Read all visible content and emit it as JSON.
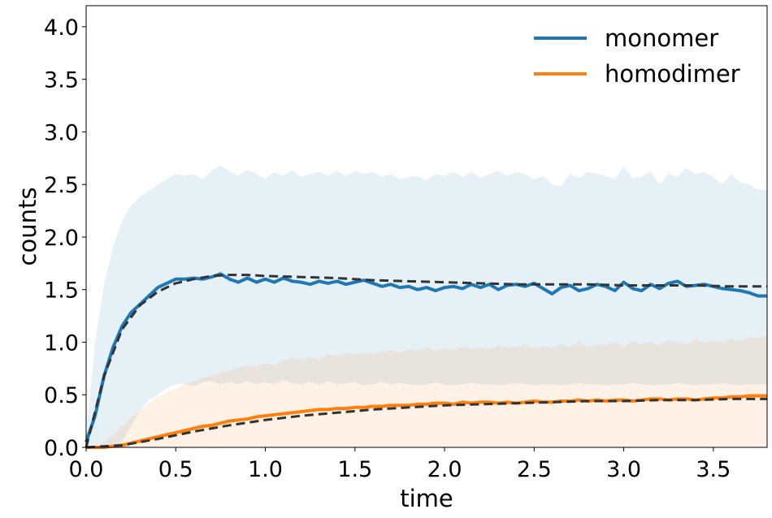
{
  "chart_data": {
    "type": "line",
    "title": "",
    "xlabel": "time",
    "ylabel": "counts",
    "xlim": [
      0,
      3.8
    ],
    "ylim": [
      0,
      4.2
    ],
    "xticks": [
      "0.0",
      "0.5",
      "1.0",
      "1.5",
      "2.0",
      "2.5",
      "3.0",
      "3.5"
    ],
    "yticks": [
      "0.0",
      "0.5",
      "1.0",
      "1.5",
      "2.0",
      "2.5",
      "3.0",
      "3.5",
      "4.0"
    ],
    "grid": false,
    "legend_position": "top-right",
    "series": [
      {
        "name": "monomer",
        "color": "#1f77b4",
        "x": [
          0,
          0.05,
          0.1,
          0.15,
          0.2,
          0.25,
          0.3,
          0.35,
          0.4,
          0.45,
          0.5,
          0.55,
          0.6,
          0.65,
          0.7,
          0.75,
          0.8,
          0.85,
          0.9,
          0.95,
          1.0,
          1.05,
          1.1,
          1.15,
          1.2,
          1.25,
          1.3,
          1.35,
          1.4,
          1.45,
          1.5,
          1.55,
          1.6,
          1.65,
          1.7,
          1.75,
          1.8,
          1.85,
          1.9,
          1.95,
          2.0,
          2.05,
          2.1,
          2.15,
          2.2,
          2.25,
          2.3,
          2.35,
          2.4,
          2.45,
          2.5,
          2.55,
          2.6,
          2.65,
          2.7,
          2.75,
          2.8,
          2.85,
          2.9,
          2.95,
          3.0,
          3.05,
          3.1,
          3.15,
          3.2,
          3.25,
          3.3,
          3.35,
          3.4,
          3.45,
          3.5,
          3.55,
          3.6,
          3.65,
          3.7,
          3.75,
          3.8
        ],
        "values": [
          0.05,
          0.3,
          0.68,
          0.95,
          1.15,
          1.28,
          1.36,
          1.44,
          1.52,
          1.56,
          1.6,
          1.6,
          1.61,
          1.6,
          1.62,
          1.65,
          1.6,
          1.57,
          1.61,
          1.57,
          1.6,
          1.57,
          1.61,
          1.58,
          1.57,
          1.55,
          1.58,
          1.56,
          1.58,
          1.55,
          1.57,
          1.59,
          1.56,
          1.53,
          1.55,
          1.52,
          1.53,
          1.5,
          1.52,
          1.49,
          1.52,
          1.53,
          1.51,
          1.55,
          1.52,
          1.55,
          1.5,
          1.54,
          1.55,
          1.53,
          1.56,
          1.51,
          1.46,
          1.52,
          1.54,
          1.49,
          1.51,
          1.55,
          1.53,
          1.49,
          1.57,
          1.51,
          1.49,
          1.55,
          1.51,
          1.56,
          1.58,
          1.53,
          1.54,
          1.55,
          1.53,
          1.51,
          1.5,
          1.49,
          1.47,
          1.44,
          1.44
        ],
        "band_lower": [
          0,
          0,
          0,
          0,
          0.05,
          0.2,
          0.35,
          0.45,
          0.5,
          0.56,
          0.6,
          0.6,
          0.58,
          0.62,
          0.63,
          0.6,
          0.62,
          0.6,
          0.63,
          0.6,
          0.62,
          0.6,
          0.64,
          0.61,
          0.6,
          0.62,
          0.6,
          0.63,
          0.6,
          0.61,
          0.62,
          0.59,
          0.6,
          0.62,
          0.6,
          0.61,
          0.6,
          0.59,
          0.6,
          0.62,
          0.6,
          0.59,
          0.6,
          0.61,
          0.6,
          0.6,
          0.59,
          0.6,
          0.61,
          0.6,
          0.59,
          0.6,
          0.6,
          0.59,
          0.6,
          0.61,
          0.6,
          0.6,
          0.59,
          0.6,
          0.6,
          0.61,
          0.6,
          0.59,
          0.6,
          0.6,
          0.61,
          0.6,
          0.59,
          0.6,
          0.6,
          0.61,
          0.6,
          0.59,
          0.6,
          0.6,
          0.6
        ],
        "band_upper": [
          0.1,
          1.0,
          1.55,
          1.9,
          2.15,
          2.3,
          2.38,
          2.44,
          2.5,
          2.55,
          2.6,
          2.58,
          2.6,
          2.55,
          2.63,
          2.68,
          2.62,
          2.58,
          2.64,
          2.6,
          2.55,
          2.62,
          2.58,
          2.64,
          2.57,
          2.6,
          2.62,
          2.58,
          2.63,
          2.58,
          2.63,
          2.6,
          2.62,
          2.57,
          2.6,
          2.55,
          2.57,
          2.58,
          2.54,
          2.6,
          2.58,
          2.62,
          2.57,
          2.62,
          2.56,
          2.6,
          2.63,
          2.58,
          2.62,
          2.6,
          2.55,
          2.58,
          2.5,
          2.48,
          2.6,
          2.56,
          2.62,
          2.6,
          2.58,
          2.55,
          2.67,
          2.56,
          2.57,
          2.62,
          2.5,
          2.6,
          2.57,
          2.66,
          2.6,
          2.62,
          2.57,
          2.5,
          2.6,
          2.52,
          2.5,
          2.45,
          2.45
        ]
      },
      {
        "name": "homodimer",
        "color": "#ff7f0e",
        "x": [
          0,
          0.05,
          0.1,
          0.15,
          0.2,
          0.25,
          0.3,
          0.35,
          0.4,
          0.45,
          0.5,
          0.55,
          0.6,
          0.65,
          0.7,
          0.75,
          0.8,
          0.85,
          0.9,
          0.95,
          1.0,
          1.05,
          1.1,
          1.15,
          1.2,
          1.25,
          1.3,
          1.35,
          1.4,
          1.45,
          1.5,
          1.55,
          1.6,
          1.65,
          1.7,
          1.75,
          1.8,
          1.85,
          1.9,
          1.95,
          2.0,
          2.05,
          2.1,
          2.15,
          2.2,
          2.25,
          2.3,
          2.35,
          2.4,
          2.45,
          2.5,
          2.55,
          2.6,
          2.65,
          2.7,
          2.75,
          2.8,
          2.85,
          2.9,
          2.95,
          3.0,
          3.05,
          3.1,
          3.15,
          3.2,
          3.25,
          3.3,
          3.35,
          3.4,
          3.45,
          3.5,
          3.55,
          3.6,
          3.65,
          3.7,
          3.75,
          3.8
        ],
        "values": [
          0,
          0,
          0,
          0.01,
          0.02,
          0.04,
          0.06,
          0.08,
          0.1,
          0.12,
          0.14,
          0.16,
          0.18,
          0.2,
          0.21,
          0.23,
          0.25,
          0.26,
          0.27,
          0.29,
          0.3,
          0.31,
          0.32,
          0.33,
          0.34,
          0.35,
          0.36,
          0.36,
          0.37,
          0.37,
          0.38,
          0.38,
          0.39,
          0.39,
          0.4,
          0.4,
          0.4,
          0.41,
          0.41,
          0.42,
          0.42,
          0.41,
          0.43,
          0.42,
          0.43,
          0.43,
          0.42,
          0.43,
          0.42,
          0.43,
          0.44,
          0.43,
          0.43,
          0.44,
          0.44,
          0.45,
          0.44,
          0.45,
          0.44,
          0.45,
          0.45,
          0.44,
          0.45,
          0.46,
          0.46,
          0.45,
          0.46,
          0.46,
          0.45,
          0.46,
          0.47,
          0.47,
          0.48,
          0.48,
          0.49,
          0.49,
          0.49
        ],
        "band_lower": [
          0,
          0,
          0,
          0,
          0,
          0,
          0,
          0,
          0,
          0,
          0,
          0,
          0,
          0,
          0,
          0,
          0,
          0,
          0,
          0,
          0,
          0,
          0,
          0,
          0,
          0,
          0,
          0,
          0,
          0,
          0,
          0,
          0,
          0,
          0,
          0,
          0,
          0,
          0,
          0,
          0,
          0,
          0,
          0,
          0,
          0,
          0,
          0,
          0,
          0,
          0,
          0,
          0,
          0,
          0,
          0,
          0,
          0,
          0,
          0,
          0,
          0,
          0,
          0,
          0,
          0,
          0,
          0,
          0,
          0,
          0,
          0,
          0,
          0,
          0,
          0,
          0
        ],
        "band_upper": [
          0,
          0,
          0.05,
          0.12,
          0.2,
          0.28,
          0.35,
          0.42,
          0.48,
          0.52,
          0.56,
          0.6,
          0.63,
          0.66,
          0.68,
          0.71,
          0.73,
          0.76,
          0.78,
          0.77,
          0.8,
          0.78,
          0.82,
          0.85,
          0.83,
          0.86,
          0.84,
          0.88,
          0.87,
          0.9,
          0.88,
          0.9,
          0.89,
          0.91,
          0.92,
          0.9,
          0.93,
          0.92,
          0.95,
          0.92,
          0.94,
          0.93,
          0.96,
          0.94,
          0.95,
          0.93,
          0.97,
          0.95,
          0.96,
          0.98,
          0.94,
          0.96,
          0.95,
          0.98,
          0.96,
          1.0,
          0.95,
          0.98,
          0.97,
          1.0,
          0.96,
          1.01,
          0.98,
          1.0,
          0.97,
          1.02,
          1.0,
          0.98,
          1.03,
          1.0,
          1.02,
          1.0,
          1.03,
          1.01,
          1.05,
          1.04,
          1.06
        ]
      },
      {
        "name": "",
        "color": "#333333",
        "dashed": true,
        "x": [
          0,
          0.1,
          0.2,
          0.3,
          0.4,
          0.5,
          0.6,
          0.7,
          0.8,
          0.9,
          1.0,
          1.2,
          1.4,
          1.6,
          1.8,
          2.0,
          2.2,
          2.4,
          2.6,
          2.8,
          3.0,
          3.2,
          3.4,
          3.6,
          3.8
        ],
        "values": [
          0,
          0.68,
          1.12,
          1.35,
          1.48,
          1.56,
          1.6,
          1.63,
          1.64,
          1.64,
          1.63,
          1.62,
          1.61,
          1.59,
          1.58,
          1.57,
          1.56,
          1.55,
          1.55,
          1.55,
          1.54,
          1.54,
          1.54,
          1.53,
          1.53
        ]
      },
      {
        "name": "",
        "color": "#333333",
        "dashed": true,
        "x": [
          0,
          0.2,
          0.4,
          0.6,
          0.8,
          1.0,
          1.2,
          1.4,
          1.6,
          1.8,
          2.0,
          2.2,
          2.4,
          2.6,
          2.8,
          3.0,
          3.2,
          3.4,
          3.6,
          3.8
        ],
        "values": [
          0,
          0.02,
          0.08,
          0.15,
          0.21,
          0.26,
          0.3,
          0.33,
          0.36,
          0.38,
          0.4,
          0.41,
          0.42,
          0.43,
          0.44,
          0.44,
          0.45,
          0.45,
          0.46,
          0.46
        ]
      }
    ]
  }
}
